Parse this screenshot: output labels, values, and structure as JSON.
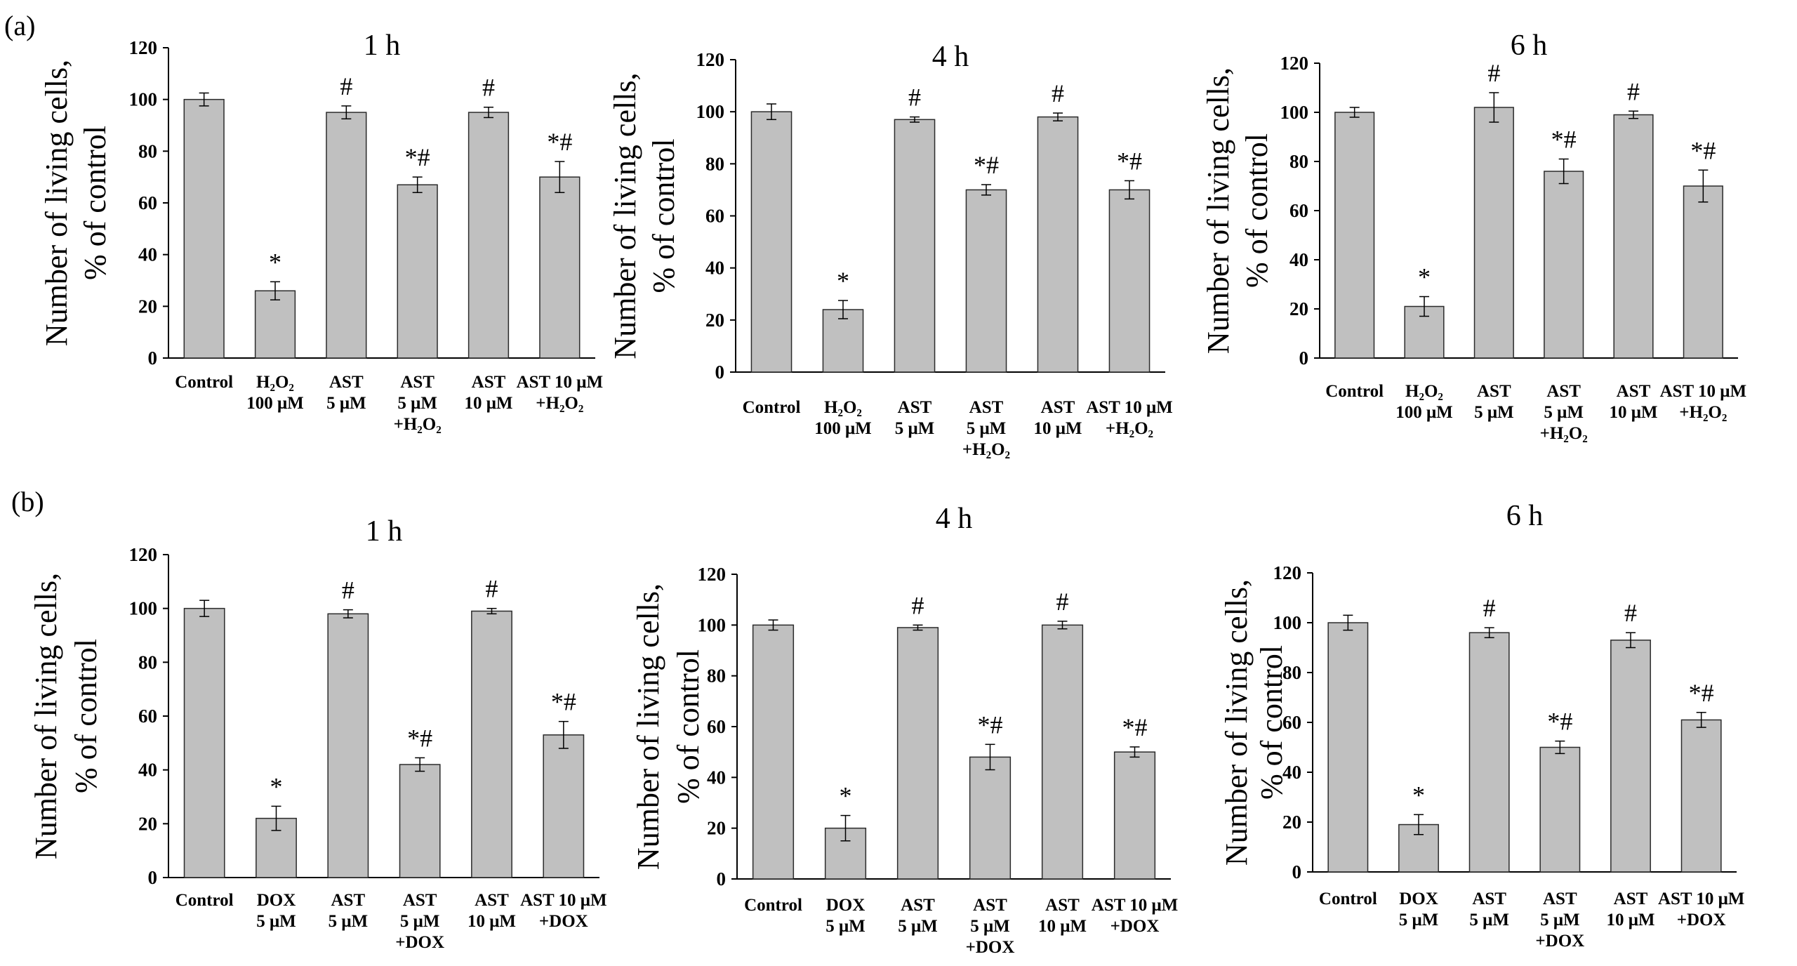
{
  "figure": {
    "panels": [
      {
        "label": "(a)"
      },
      {
        "label": "(b)"
      }
    ]
  },
  "chart_data": [
    {
      "type": "bar",
      "panel": "(a)",
      "title": "1 h",
      "ylabel": "Number of living cells,",
      "ylabel2": "% of control",
      "ylim": [
        0,
        120
      ],
      "yticks": [
        0,
        20,
        40,
        60,
        80,
        100,
        120
      ],
      "grid": false,
      "categories": [
        [
          "Control"
        ],
        [
          "H₂O₂",
          "100 μM"
        ],
        [
          "AST",
          "5 μM"
        ],
        [
          "AST",
          "5 μM",
          "+H₂O₂"
        ],
        [
          "AST",
          "10 μM"
        ],
        [
          "AST 10 μM",
          "+H₂O₂"
        ]
      ],
      "values": [
        100,
        26,
        95,
        67,
        95,
        70
      ],
      "errors": [
        2.5,
        3.5,
        2.5,
        3,
        2,
        6
      ],
      "significance": [
        "",
        "*",
        "#",
        "*#",
        "#",
        "*#"
      ]
    },
    {
      "type": "bar",
      "panel": "(a)",
      "title": "4 h",
      "ylabel": "Number of living cells,",
      "ylabel2": "% of control",
      "ylim": [
        0,
        120
      ],
      "yticks": [
        0,
        20,
        40,
        60,
        80,
        100,
        120
      ],
      "grid": false,
      "categories": [
        [
          "Control"
        ],
        [
          "H₂O₂",
          "100 μM"
        ],
        [
          "AST",
          "5 μM"
        ],
        [
          "AST",
          "5 μM",
          "+H₂O₂"
        ],
        [
          "AST",
          "10 μM"
        ],
        [
          "AST 10 μM",
          "+H₂O₂"
        ]
      ],
      "values": [
        100,
        24,
        97,
        70,
        98,
        70
      ],
      "errors": [
        3,
        3.5,
        1,
        2,
        1.5,
        3.5
      ],
      "significance": [
        "",
        "*",
        "#",
        "*#",
        "#",
        "*#"
      ]
    },
    {
      "type": "bar",
      "panel": "(a)",
      "title": "6 h",
      "ylabel": "Number of living cells,",
      "ylabel2": "% of control",
      "ylim": [
        0,
        120
      ],
      "yticks": [
        0,
        20,
        40,
        60,
        80,
        100,
        120
      ],
      "grid": false,
      "categories": [
        [
          "Control"
        ],
        [
          "H₂O₂",
          "100 μM"
        ],
        [
          "AST",
          "5 μM"
        ],
        [
          "AST",
          "5 μM",
          "+H₂O₂"
        ],
        [
          "AST",
          "10 μM"
        ],
        [
          "AST 10 μM",
          "+H₂O₂"
        ]
      ],
      "values": [
        100,
        21,
        102,
        76,
        99,
        70
      ],
      "errors": [
        2,
        4,
        6,
        5,
        1.5,
        6.5
      ],
      "significance": [
        "",
        "*",
        "#",
        "*#",
        "#",
        "*#"
      ]
    },
    {
      "type": "bar",
      "panel": "(b)",
      "title": "1 h",
      "ylabel": "Number of living cells,",
      "ylabel2": "% of control",
      "ylim": [
        0,
        120
      ],
      "yticks": [
        0,
        20,
        40,
        60,
        80,
        100,
        120
      ],
      "grid": false,
      "categories": [
        [
          "Control"
        ],
        [
          "DOX",
          "5 μM"
        ],
        [
          "AST",
          "5 μM"
        ],
        [
          "AST",
          "5 μM",
          "+DOX"
        ],
        [
          "AST",
          "10 μM"
        ],
        [
          "AST 10 μM",
          "+DOX"
        ]
      ],
      "values": [
        100,
        22,
        98,
        42,
        99,
        53
      ],
      "errors": [
        3,
        4.5,
        1.5,
        2.5,
        1,
        5
      ],
      "significance": [
        "",
        "*",
        "#",
        "*#",
        "#",
        "*#"
      ]
    },
    {
      "type": "bar",
      "panel": "(b)",
      "title": "4 h",
      "ylabel": "Number of living cells,",
      "ylabel2": "% of control",
      "ylim": [
        0,
        120
      ],
      "yticks": [
        0,
        20,
        40,
        60,
        80,
        100,
        120
      ],
      "grid": false,
      "categories": [
        [
          "Control"
        ],
        [
          "DOX",
          "5 μM"
        ],
        [
          "AST",
          "5 μM"
        ],
        [
          "AST",
          "5 μM",
          "+DOX"
        ],
        [
          "AST",
          "10 μM"
        ],
        [
          "AST 10 μM",
          "+DOX"
        ]
      ],
      "values": [
        100,
        20,
        99,
        48,
        100,
        50
      ],
      "errors": [
        2,
        5,
        1,
        5,
        1.5,
        2
      ],
      "significance": [
        "",
        "*",
        "#",
        "*#",
        "#",
        "*#"
      ]
    },
    {
      "type": "bar",
      "panel": "(b)",
      "title": "6 h",
      "ylabel": "Number of living cells,",
      "ylabel2": "% of control",
      "ylim": [
        0,
        120
      ],
      "yticks": [
        0,
        20,
        40,
        60,
        80,
        100,
        120
      ],
      "grid": false,
      "categories": [
        [
          "Control"
        ],
        [
          "DOX",
          "5 μM"
        ],
        [
          "AST",
          "5 μM"
        ],
        [
          "AST",
          "5 μM",
          "+DOX"
        ],
        [
          "AST",
          "10 μM"
        ],
        [
          "AST 10 μM",
          "+DOX"
        ]
      ],
      "values": [
        100,
        19,
        96,
        50,
        93,
        61
      ],
      "errors": [
        3,
        4,
        2,
        2.5,
        3,
        3
      ],
      "significance": [
        "",
        "*",
        "#",
        "*#",
        "#",
        "*#"
      ]
    }
  ]
}
